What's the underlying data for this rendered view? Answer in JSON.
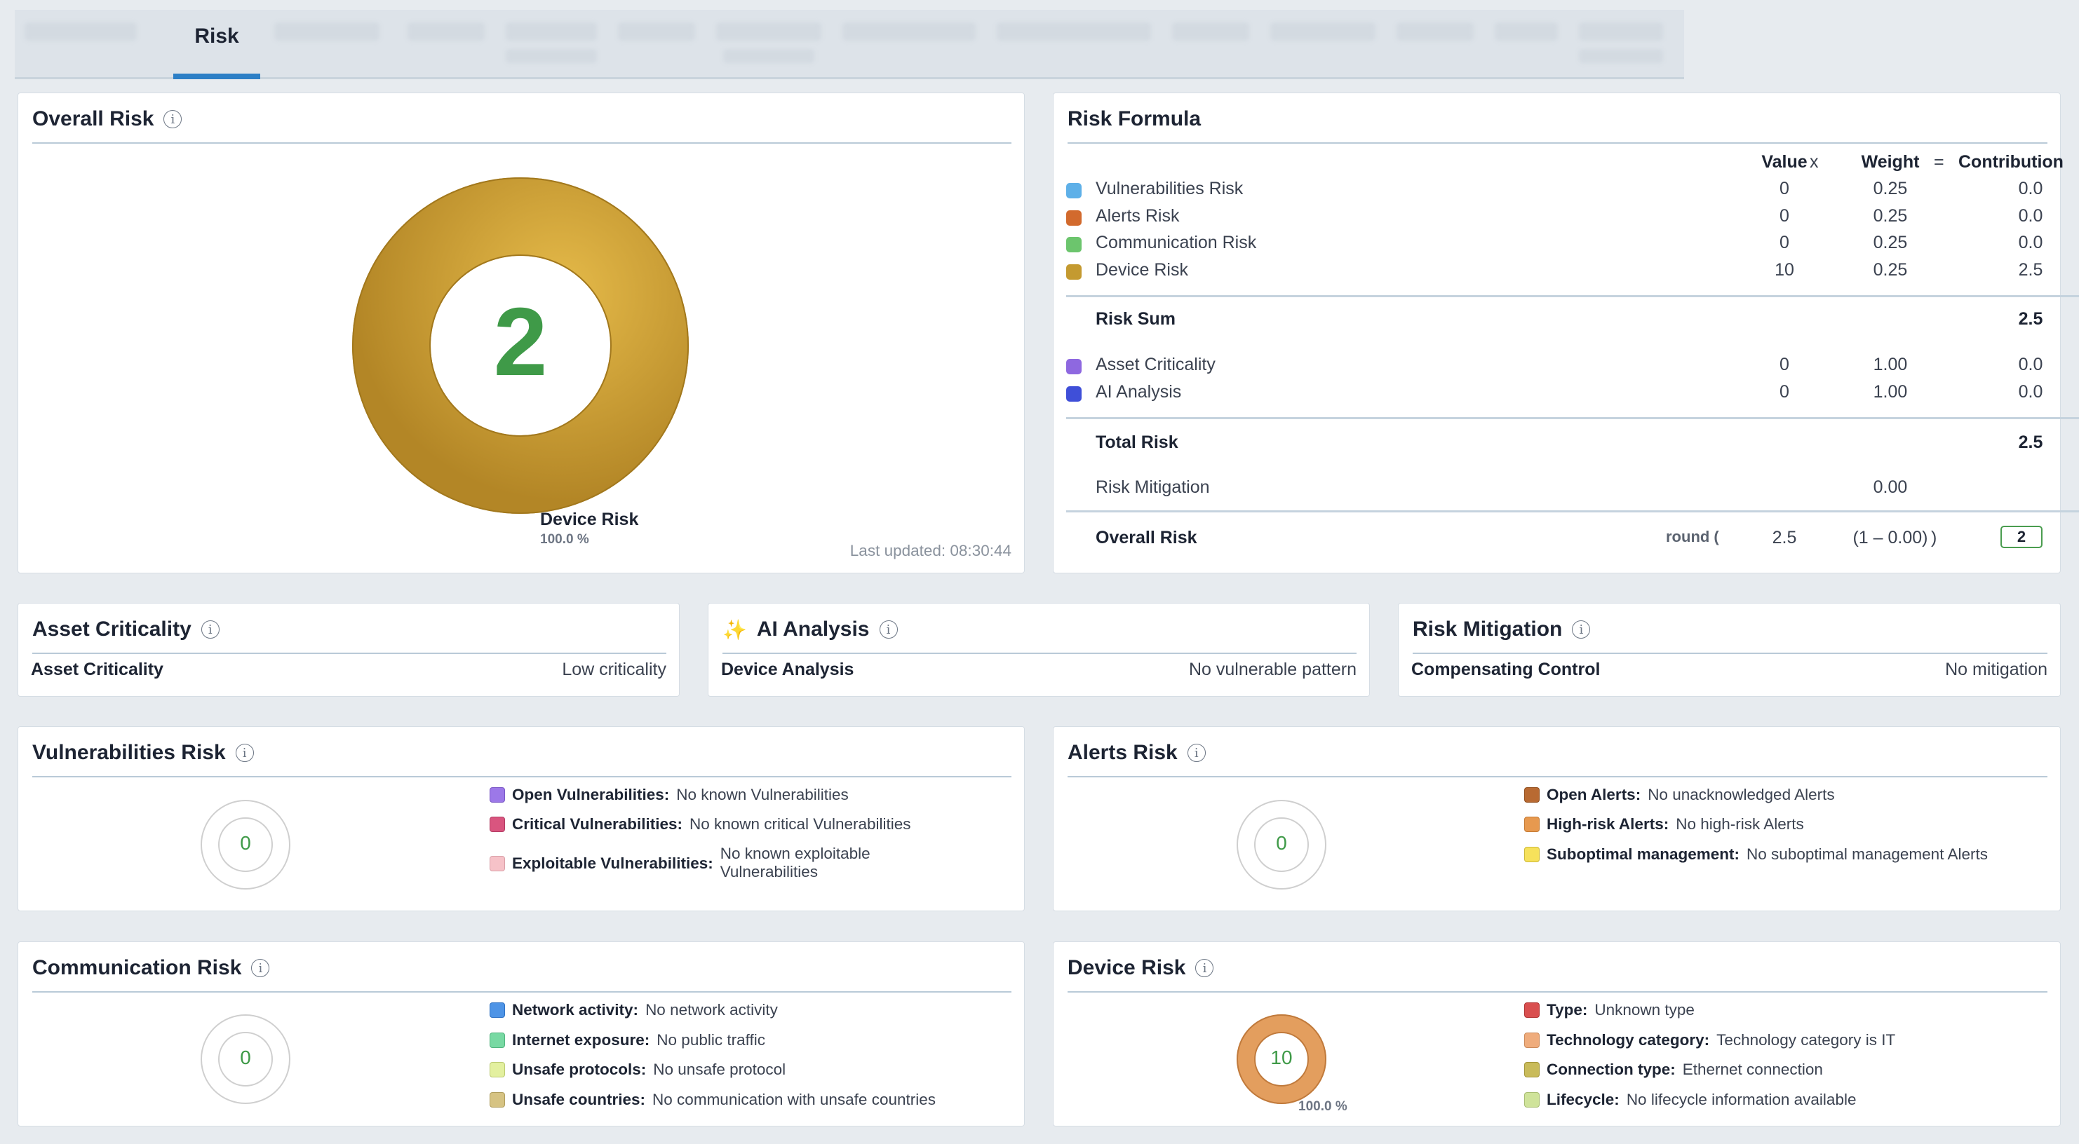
{
  "tabs": {
    "active_label": "Risk"
  },
  "overall": {
    "title": "Overall Risk",
    "score": "2",
    "segment_label": "Device Risk",
    "segment_pct": "100.0 %",
    "updated": "Last updated: 08:30:44",
    "ring_color": "#c9a032"
  },
  "formula": {
    "title": "Risk Formula",
    "headers": {
      "value": "Value",
      "x": "x",
      "weight": "Weight",
      "eq": "=",
      "contribution": "Contribution"
    },
    "rows": [
      {
        "label": "Vulnerabilities Risk",
        "color": "#5eb0e8",
        "value": "0",
        "weight": "0.25",
        "contribution": "0.0"
      },
      {
        "label": "Alerts Risk",
        "color": "#d26a2d",
        "value": "0",
        "weight": "0.25",
        "contribution": "0.0"
      },
      {
        "label": "Communication Risk",
        "color": "#6cc56d",
        "value": "0",
        "weight": "0.25",
        "contribution": "0.0"
      },
      {
        "label": "Device Risk",
        "color": "#c49a30",
        "value": "10",
        "weight": "0.25",
        "contribution": "2.5"
      }
    ],
    "risk_sum": {
      "label": "Risk Sum",
      "value": "2.5"
    },
    "extra_rows": [
      {
        "label": "Asset Criticality",
        "color": "#8e68e0",
        "value": "0",
        "weight": "1.00",
        "contribution": "0.0"
      },
      {
        "label": "AI Analysis",
        "color": "#3f4fd8",
        "value": "0",
        "weight": "1.00",
        "contribution": "0.0"
      }
    ],
    "total": {
      "label": "Total Risk",
      "value": "2.5"
    },
    "mitigation": {
      "label": "Risk Mitigation",
      "value": "0.00"
    },
    "overall": {
      "label": "Overall Risk",
      "round": "round (",
      "a": "2.5",
      "b": "(1 – 0.00)",
      "close": ")",
      "result": "2"
    }
  },
  "asset": {
    "title": "Asset Criticality",
    "key": "Asset Criticality",
    "value": "Low criticality"
  },
  "ai": {
    "title": "AI Analysis",
    "key": "Device Analysis",
    "value": "No vulnerable pattern"
  },
  "mitigation": {
    "title": "Risk Mitigation",
    "key": "Compensating Control",
    "value": "No mitigation"
  },
  "vuln": {
    "title": "Vulnerabilities Risk",
    "score": "0",
    "items": [
      {
        "key": "Open Vulnerabilities:",
        "value": "No known Vulnerabilities",
        "color": "#9c78e8"
      },
      {
        "key": "Critical Vulnerabilities:",
        "value": "No known critical Vulnerabilities",
        "color": "#d9557f"
      },
      {
        "key": "Exploitable Vulnerabilities:",
        "value": "No known exploitable",
        "value2": "Vulnerabilities",
        "color": "#f6c2c8"
      }
    ]
  },
  "alerts": {
    "title": "Alerts Risk",
    "score": "0",
    "items": [
      {
        "key": "Open Alerts:",
        "value": "No unacknowledged Alerts",
        "color": "#b86a32"
      },
      {
        "key": "High-risk Alerts:",
        "value": "No high-risk Alerts",
        "color": "#e7994f"
      },
      {
        "key": "Suboptimal management:",
        "value": "No suboptimal management Alerts",
        "color": "#f6e15b"
      }
    ]
  },
  "comm": {
    "title": "Communication Risk",
    "score": "0",
    "items": [
      {
        "key": "Network activity:",
        "value": "No network activity",
        "color": "#4e94e6"
      },
      {
        "key": "Internet exposure:",
        "value": "No public traffic",
        "color": "#78d9a3"
      },
      {
        "key": "Unsafe protocols:",
        "value": "No unsafe protocol",
        "color": "#e3f09f"
      },
      {
        "key": "Unsafe countries:",
        "value": "No communication with unsafe countries",
        "color": "#d6c383"
      }
    ]
  },
  "device": {
    "title": "Device Risk",
    "score": "10",
    "pct": "100.0 %",
    "ring_color": "#e39e5e",
    "items": [
      {
        "key": "Type:",
        "value": "Unknown type",
        "color": "#d94f4f"
      },
      {
        "key": "Technology category:",
        "value": "Technology category is IT",
        "color": "#efac7c"
      },
      {
        "key": "Connection type:",
        "value": "Ethernet connection",
        "color": "#c9bb5a"
      },
      {
        "key": "Lifecycle:",
        "value": "No lifecycle information available",
        "color": "#cfe39a"
      }
    ]
  }
}
